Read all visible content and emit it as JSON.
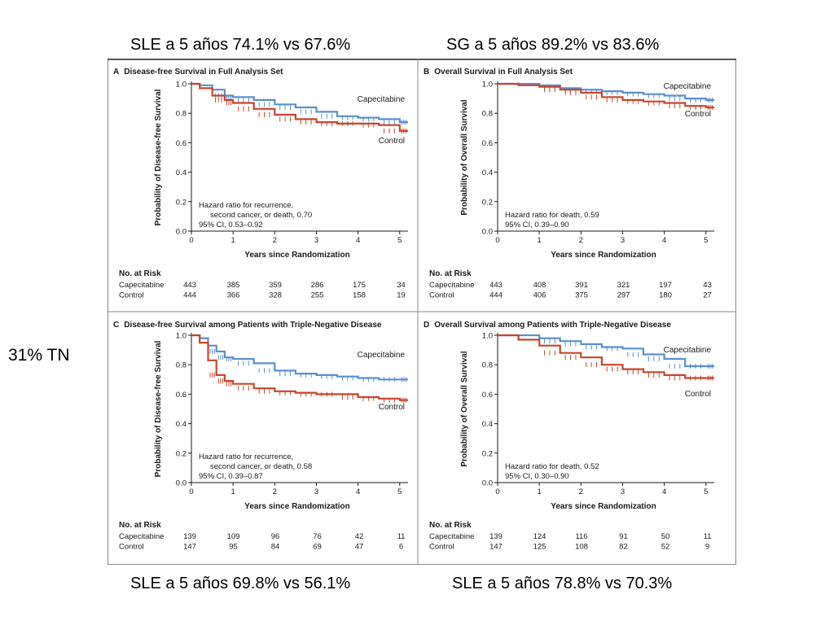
{
  "captions": {
    "top_left": "SLE a 5 años 74.1% vs 67.6%",
    "top_right": "SG a 5 años 89.2% vs 83.6%",
    "bottom_left": "SLE a 5 años 69.8% vs 56.1%",
    "bottom_right": "SLE a 5 años 78.8% vs 70.3%",
    "side": "31% TN"
  },
  "colors": {
    "capecitabine": "#5b8fd0",
    "control": "#c9452c",
    "axis": "#1a1a1a",
    "frame": "#888888"
  },
  "chart_data": [
    {
      "type": "line",
      "panel": "A",
      "title": "Disease-free Survival in Full Analysis Set",
      "xlabel": "Years since Randomization",
      "ylabel": "Probability of Disease-free Survival",
      "xlim": [
        0,
        5.2
      ],
      "ylim": [
        0,
        1.0
      ],
      "xticks": [
        "0",
        "1",
        "2",
        "3",
        "4",
        "5"
      ],
      "yticks": [
        "0.0",
        "0.2",
        "0.4",
        "0.6",
        "0.8",
        "1.0"
      ],
      "annotation": [
        "Hazard ratio for recurrence,",
        "second cancer, or death, 0.70",
        "95% CI, 0.53–0.92"
      ],
      "series": [
        {
          "name": "Capecitabine",
          "x": [
            0,
            0.2,
            0.5,
            0.8,
            1.0,
            1.5,
            2.0,
            2.5,
            3.0,
            3.5,
            4.0,
            4.5,
            5.0,
            5.2
          ],
          "y": [
            1.0,
            0.99,
            0.96,
            0.92,
            0.91,
            0.89,
            0.86,
            0.84,
            0.81,
            0.78,
            0.77,
            0.76,
            0.74,
            0.74
          ]
        },
        {
          "name": "Control",
          "x": [
            0,
            0.2,
            0.5,
            0.8,
            1.0,
            1.5,
            2.0,
            2.5,
            3.0,
            3.5,
            4.0,
            4.5,
            5.0,
            5.2
          ],
          "y": [
            1.0,
            0.97,
            0.92,
            0.89,
            0.87,
            0.83,
            0.79,
            0.76,
            0.74,
            0.73,
            0.73,
            0.72,
            0.68,
            0.68
          ]
        }
      ],
      "risk": {
        "header": "No. at Risk",
        "rows": [
          {
            "label": "Capecitabine",
            "values": [
              "443",
              "385",
              "359",
              "286",
              "175",
              "34"
            ]
          },
          {
            "label": "Control",
            "values": [
              "444",
              "366",
              "328",
              "255",
              "158",
              "19"
            ]
          }
        ]
      }
    },
    {
      "type": "line",
      "panel": "B",
      "title": "Overall Survival in Full Analysis Set",
      "xlabel": "Years since Randomization",
      "ylabel": "Probability of Overall Survival",
      "xlim": [
        0,
        5.2
      ],
      "ylim": [
        0,
        1.0
      ],
      "xticks": [
        "0",
        "1",
        "2",
        "3",
        "4",
        "5"
      ],
      "yticks": [
        "0.0",
        "0.2",
        "0.4",
        "0.6",
        "0.8",
        "1.0"
      ],
      "annotation": [
        "Hazard ratio for death, 0.59",
        "95% CI, 0.39–0.90"
      ],
      "series": [
        {
          "name": "Capecitabine",
          "x": [
            0,
            0.5,
            1.0,
            1.5,
            2.0,
            2.5,
            3.0,
            3.5,
            4.0,
            4.5,
            5.0,
            5.2
          ],
          "y": [
            1.0,
            1.0,
            0.99,
            0.97,
            0.96,
            0.95,
            0.94,
            0.93,
            0.92,
            0.9,
            0.89,
            0.89
          ]
        },
        {
          "name": "Control",
          "x": [
            0,
            0.5,
            1.0,
            1.5,
            2.0,
            2.5,
            3.0,
            3.5,
            4.0,
            4.5,
            5.0,
            5.2
          ],
          "y": [
            1.0,
            0.99,
            0.98,
            0.96,
            0.94,
            0.91,
            0.89,
            0.88,
            0.87,
            0.85,
            0.84,
            0.84
          ]
        }
      ],
      "risk": {
        "header": "No. at Risk",
        "rows": [
          {
            "label": "Capecitabine",
            "values": [
              "443",
              "408",
              "391",
              "321",
              "197",
              "43"
            ]
          },
          {
            "label": "Control",
            "values": [
              "444",
              "406",
              "375",
              "297",
              "180",
              "27"
            ]
          }
        ]
      }
    },
    {
      "type": "line",
      "panel": "C",
      "title": "Disease-free Survival among Patients with Triple-Negative Disease",
      "xlabel": "Years since Randomization",
      "ylabel": "Probability of Disease-free Survival",
      "xlim": [
        0,
        5.2
      ],
      "ylim": [
        0,
        1.0
      ],
      "xticks": [
        "0",
        "1",
        "2",
        "3",
        "4",
        "5"
      ],
      "yticks": [
        "0.0",
        "0.2",
        "0.4",
        "0.6",
        "0.8",
        "1.0"
      ],
      "annotation": [
        "Hazard ratio for recurrence,",
        "second cancer, or death, 0.58",
        "95% CI, 0.39–0.87"
      ],
      "series": [
        {
          "name": "Capecitabine",
          "x": [
            0,
            0.2,
            0.4,
            0.6,
            0.8,
            1.0,
            1.5,
            2.0,
            2.5,
            3.0,
            3.5,
            4.0,
            4.5,
            5.0,
            5.2
          ],
          "y": [
            1.0,
            0.98,
            0.93,
            0.89,
            0.85,
            0.84,
            0.81,
            0.76,
            0.74,
            0.73,
            0.72,
            0.71,
            0.7,
            0.7,
            0.7
          ]
        },
        {
          "name": "Control",
          "x": [
            0,
            0.2,
            0.4,
            0.6,
            0.8,
            1.0,
            1.5,
            2.0,
            2.5,
            3.0,
            3.5,
            4.0,
            4.5,
            5.0,
            5.2
          ],
          "y": [
            1.0,
            0.95,
            0.83,
            0.73,
            0.69,
            0.67,
            0.64,
            0.62,
            0.61,
            0.6,
            0.6,
            0.58,
            0.57,
            0.56,
            0.56
          ]
        }
      ],
      "risk": {
        "header": "No. at Risk",
        "rows": [
          {
            "label": "Capecitabine",
            "values": [
              "139",
              "109",
              "96",
              "76",
              "42",
              "11"
            ]
          },
          {
            "label": "Control",
            "values": [
              "147",
              "95",
              "84",
              "69",
              "47",
              "6"
            ]
          }
        ]
      }
    },
    {
      "type": "line",
      "panel": "D",
      "title": "Overall Survival among Patients with Triple-Negative Disease",
      "xlabel": "Years since Randomization",
      "ylabel": "Probability of Overall Survival",
      "xlim": [
        0,
        5.2
      ],
      "ylim": [
        0,
        1.0
      ],
      "xticks": [
        "0",
        "1",
        "2",
        "3",
        "4",
        "5"
      ],
      "yticks": [
        "0.0",
        "0.2",
        "0.4",
        "0.6",
        "0.8",
        "1.0"
      ],
      "annotation": [
        "Hazard ratio for death, 0.52",
        "95% CI, 0.30–0.90"
      ],
      "series": [
        {
          "name": "Capecitabine",
          "x": [
            0,
            0.5,
            1.0,
            1.5,
            2.0,
            2.5,
            3.0,
            3.5,
            4.0,
            4.5,
            5.0,
            5.2
          ],
          "y": [
            1.0,
            1.0,
            0.98,
            0.96,
            0.94,
            0.92,
            0.91,
            0.87,
            0.84,
            0.79,
            0.79,
            0.79
          ]
        },
        {
          "name": "Control",
          "x": [
            0,
            0.5,
            1.0,
            1.5,
            2.0,
            2.5,
            3.0,
            3.5,
            4.0,
            4.5,
            5.0,
            5.2
          ],
          "y": [
            1.0,
            0.97,
            0.93,
            0.88,
            0.85,
            0.8,
            0.77,
            0.75,
            0.73,
            0.71,
            0.71,
            0.71
          ]
        }
      ],
      "risk": {
        "header": "No. at Risk",
        "rows": [
          {
            "label": "Capecitabine",
            "values": [
              "139",
              "124",
              "116",
              "91",
              "50",
              "11"
            ]
          },
          {
            "label": "Control",
            "values": [
              "147",
              "125",
              "108",
              "82",
              "52",
              "9"
            ]
          }
        ]
      }
    }
  ]
}
